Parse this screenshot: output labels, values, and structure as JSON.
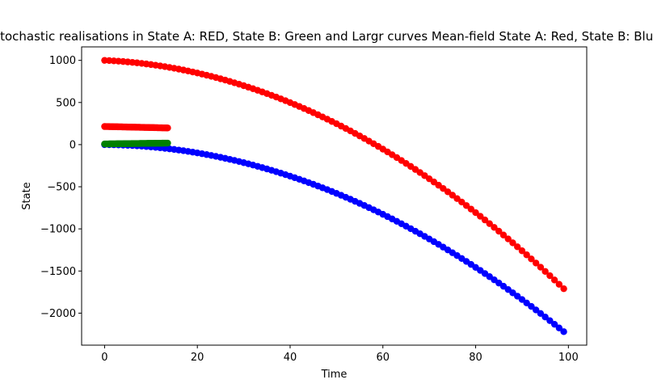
{
  "chart_data": {
    "type": "scatter",
    "title": "Stochastic realisations in State A: RED, State B: Green and Largr curves Mean-field State A: Red, State B: Blue",
    "xlabel": "Time",
    "ylabel": "State",
    "xlim": [
      -4.95,
      103.95
    ],
    "ylim": [
      -2380,
      1160
    ],
    "grid": false,
    "x_ticks": [
      0,
      20,
      40,
      60,
      80,
      100
    ],
    "x_tick_labels": [
      "0",
      "20",
      "40",
      "60",
      "80",
      "100"
    ],
    "y_ticks": [
      1000,
      500,
      0,
      -500,
      -1000,
      -1500,
      -2000
    ],
    "y_tick_labels": [
      "1000",
      "500",
      "0",
      "−500",
      "−1000",
      "−1500",
      "−2000"
    ],
    "series": [
      {
        "color": "#ff0000",
        "model": "quadratic",
        "x_range": [
          0,
          99
        ],
        "x_step": 1,
        "y_at_x0": 1000,
        "y_at_x_end": -1710,
        "quadratic_coef": -0.2516
      },
      {
        "color": "#0000ff",
        "model": "quadratic",
        "x_range": [
          0,
          99
        ],
        "x_step": 1,
        "y_at_x0": 0,
        "y_at_x_end": -2220,
        "quadratic_coef": -0.2215
      },
      {
        "color": "#ff0000",
        "model": "linear",
        "x_range": [
          0,
          13.6
        ],
        "x_step": 0.2,
        "y_at_x0": 215,
        "y_at_x_end": 198
      },
      {
        "color": "#008000",
        "model": "linear",
        "x_range": [
          0,
          13.6
        ],
        "x_step": 0.2,
        "y_at_x0": 8,
        "y_at_x_end": 18
      }
    ]
  },
  "colors": {
    "red": "#ff0000",
    "blue": "#0000ff",
    "green": "#008000"
  }
}
